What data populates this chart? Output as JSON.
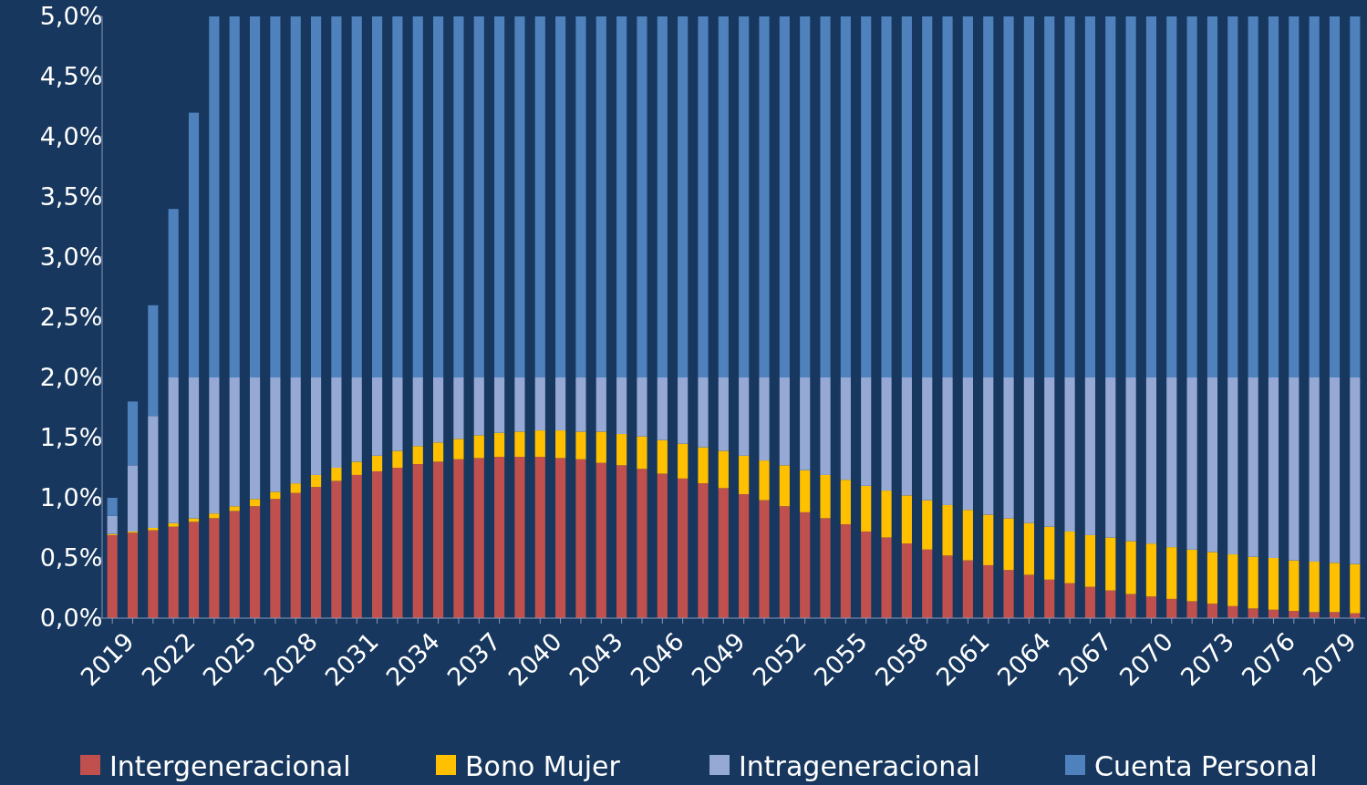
{
  "chart_data": {
    "type": "bar",
    "stacked": true,
    "legend": "bottom",
    "categories": [
      "2019",
      null,
      null,
      "2022",
      null,
      null,
      "2025",
      null,
      null,
      "2028",
      null,
      null,
      "2031",
      null,
      null,
      "2034",
      null,
      null,
      "2037",
      null,
      null,
      "2040",
      null,
      null,
      "2043",
      null,
      null,
      "2046",
      null,
      null,
      "2049",
      null,
      null,
      "2052",
      null,
      null,
      "2055",
      null,
      null,
      "2058",
      null,
      null,
      "2061",
      null,
      null,
      "2064",
      null,
      null,
      "2067",
      null,
      null,
      "2070",
      null,
      null,
      "2073",
      null,
      null,
      "2076",
      null,
      null,
      "2079",
      null
    ],
    "ylim": [
      0,
      5
    ],
    "yticks": [
      {
        "value": 0,
        "label": "0,0%"
      },
      {
        "value": 0.5,
        "label": "0,5%"
      },
      {
        "value": 1,
        "label": "1,0%"
      },
      {
        "value": 1.5,
        "label": "1,5%"
      },
      {
        "value": 2,
        "label": "2,0%"
      },
      {
        "value": 2.5,
        "label": "2,5%"
      },
      {
        "value": 3,
        "label": "3,0%"
      },
      {
        "value": 3.5,
        "label": "3,5%"
      },
      {
        "value": 4,
        "label": "4,0%"
      },
      {
        "value": 4.5,
        "label": "4,5%"
      },
      {
        "value": 5,
        "label": "5,0%"
      }
    ],
    "series": [
      {
        "name": "Intergeneracional",
        "color": "#c0504d",
        "values": [
          0.69,
          0.71,
          0.73,
          0.76,
          0.8,
          0.83,
          0.89,
          0.93,
          0.99,
          1.04,
          1.09,
          1.14,
          1.19,
          1.22,
          1.25,
          1.28,
          1.3,
          1.32,
          1.33,
          1.34,
          1.34,
          1.34,
          1.33,
          1.32,
          1.29,
          1.27,
          1.24,
          1.2,
          1.16,
          1.12,
          1.08,
          1.03,
          0.98,
          0.93,
          0.88,
          0.83,
          0.78,
          0.72,
          0.67,
          0.62,
          0.57,
          0.52,
          0.48,
          0.44,
          0.4,
          0.36,
          0.32,
          0.29,
          0.26,
          0.23,
          0.2,
          0.18,
          0.16,
          0.14,
          0.12,
          0.1,
          0.08,
          0.07,
          0.06,
          0.05,
          0.05,
          0.04
        ]
      },
      {
        "name": "Bono Mujer",
        "color": "#ffc000",
        "values": [
          0.01,
          0.01,
          0.02,
          0.03,
          0.03,
          0.04,
          0.04,
          0.06,
          0.06,
          0.08,
          0.1,
          0.11,
          0.11,
          0.13,
          0.14,
          0.15,
          0.16,
          0.17,
          0.19,
          0.2,
          0.21,
          0.22,
          0.23,
          0.23,
          0.26,
          0.26,
          0.27,
          0.28,
          0.29,
          0.3,
          0.31,
          0.32,
          0.33,
          0.34,
          0.35,
          0.36,
          0.37,
          0.38,
          0.39,
          0.4,
          0.41,
          0.42,
          0.42,
          0.42,
          0.43,
          0.43,
          0.44,
          0.43,
          0.43,
          0.44,
          0.44,
          0.44,
          0.43,
          0.43,
          0.43,
          0.43,
          0.43,
          0.43,
          0.42,
          0.42,
          0.41,
          0.41
        ]
      },
      {
        "name": "Intrageneracional",
        "color": "#95a9d4",
        "values": [
          0.15,
          0.55,
          0.93,
          1.21,
          1.17,
          1.13,
          1.07,
          1.01,
          0.95,
          0.88,
          0.81,
          0.75,
          0.7,
          0.65,
          0.61,
          0.57,
          0.54,
          0.51,
          0.48,
          0.46,
          0.45,
          0.44,
          0.44,
          0.45,
          0.45,
          0.47,
          0.49,
          0.52,
          0.55,
          0.58,
          0.61,
          0.65,
          0.69,
          0.73,
          0.77,
          0.81,
          0.85,
          0.9,
          0.94,
          0.98,
          1.02,
          1.06,
          1.1,
          1.14,
          1.17,
          1.21,
          1.24,
          1.28,
          1.31,
          1.33,
          1.36,
          1.38,
          1.41,
          1.43,
          1.45,
          1.47,
          1.49,
          1.5,
          1.52,
          1.53,
          1.54,
          1.55
        ]
      },
      {
        "name": "Cuenta Personal",
        "color": "#4f81bd",
        "values": [
          0.15,
          0.53,
          0.92,
          1.4,
          2.2,
          3,
          3,
          3,
          3,
          3,
          3,
          3,
          3,
          3,
          3,
          3,
          3,
          3,
          3,
          3,
          3,
          3,
          3,
          3,
          3,
          3,
          3,
          3,
          3,
          3,
          3,
          3,
          3,
          3,
          3,
          3,
          3,
          3,
          3,
          3,
          3,
          3,
          3,
          3,
          3,
          3,
          3,
          3,
          3,
          3,
          3,
          3,
          3,
          3,
          3,
          3,
          3,
          3,
          3,
          3,
          3,
          3
        ]
      }
    ]
  }
}
